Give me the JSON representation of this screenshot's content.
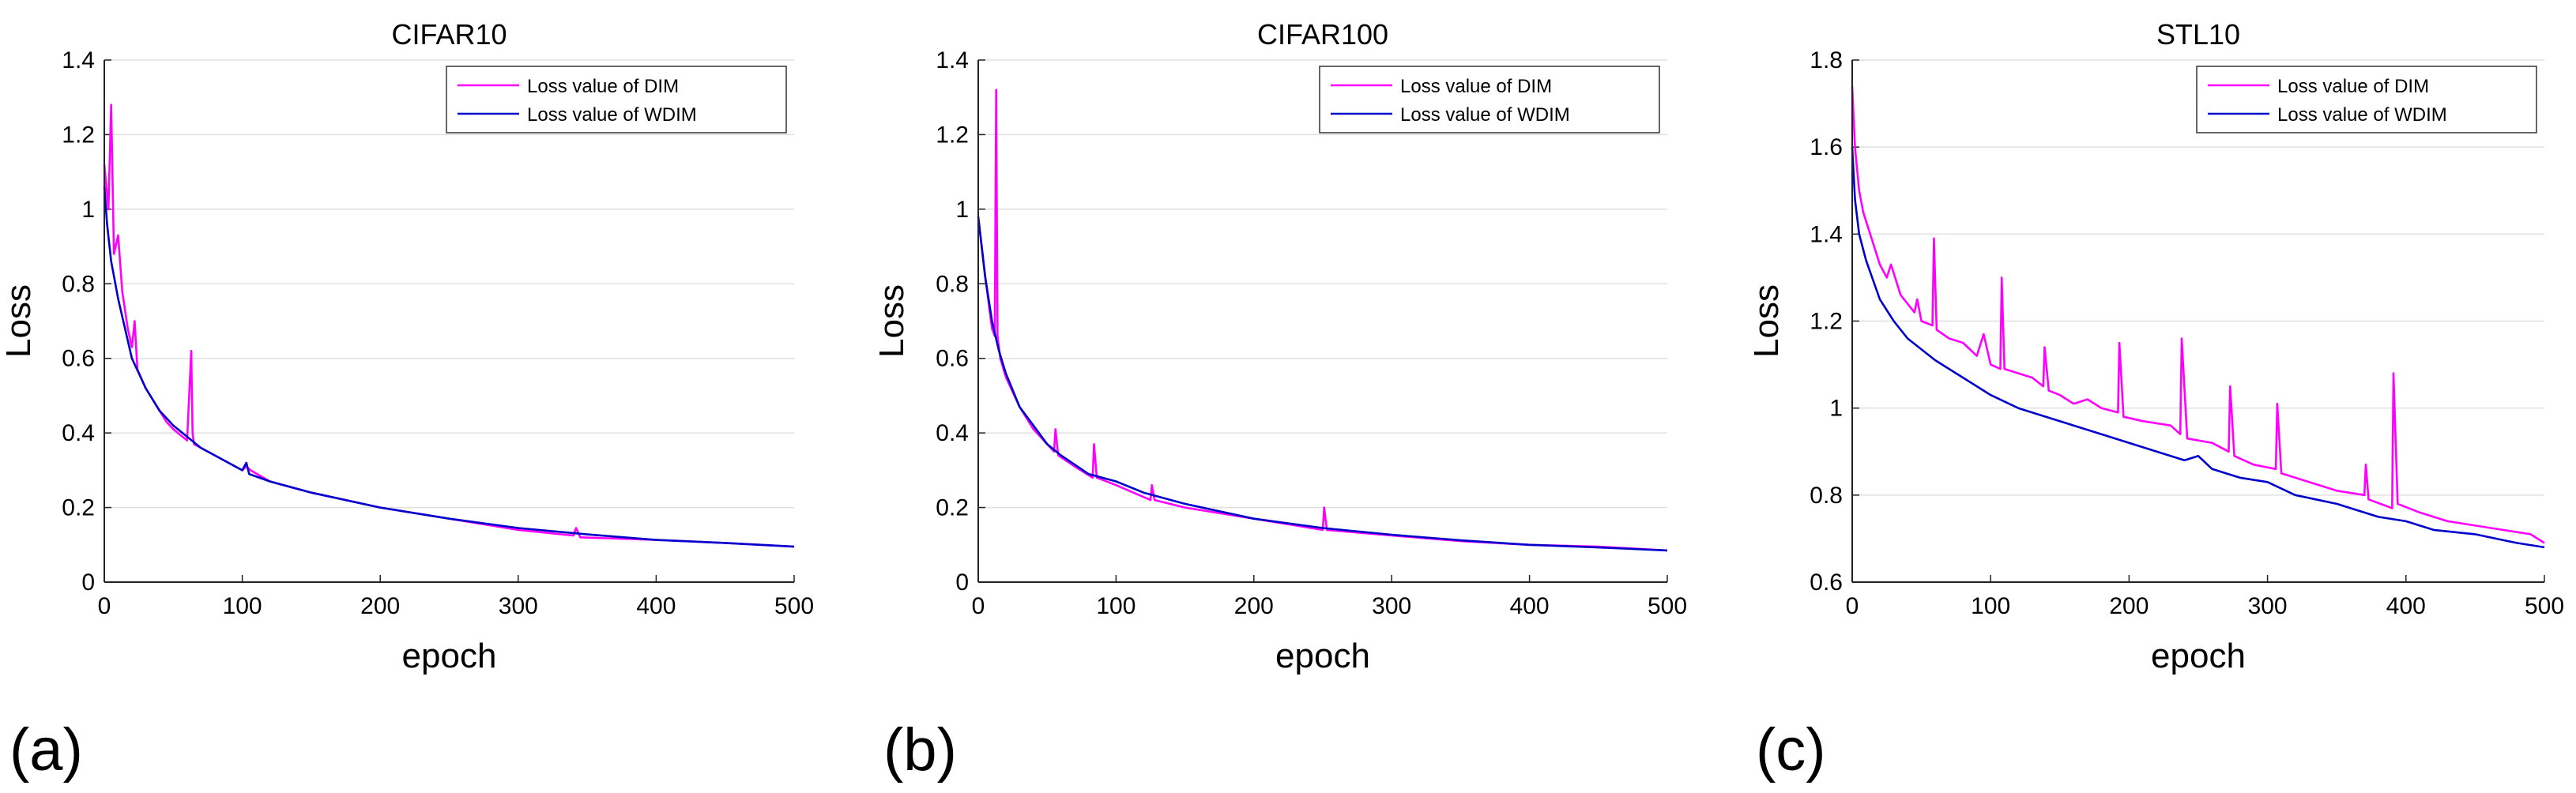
{
  "colors": {
    "dim": "#ff00ff",
    "wdim": "#0000cc",
    "grid": "#e0e0e0",
    "axis": "#222222"
  },
  "chart_data": [
    {
      "type": "line",
      "panel": "(a)",
      "title": "CIFAR10",
      "xlabel": "epoch",
      "ylabel": "Loss",
      "xlim": [
        0,
        500
      ],
      "ylim": [
        0,
        1.4
      ],
      "xticks": [
        0,
        100,
        200,
        300,
        400,
        500
      ],
      "yticks": [
        0,
        0.2,
        0.4,
        0.6,
        0.8,
        1,
        1.2,
        1.4
      ],
      "grid": "horizontal",
      "legend": "top-right",
      "series": [
        {
          "name": "Loss value of DIM",
          "color": "#ff00ff",
          "x": [
            0,
            3,
            5,
            7,
            10,
            13,
            17,
            20,
            22,
            24,
            30,
            40,
            45,
            50,
            60,
            63,
            64,
            65,
            70,
            80,
            100,
            103,
            106,
            120,
            150,
            200,
            250,
            300,
            340,
            342,
            345,
            400,
            450,
            500
          ],
          "y": [
            1.12,
            1.0,
            1.28,
            0.88,
            0.93,
            0.78,
            0.68,
            0.63,
            0.7,
            0.57,
            0.52,
            0.46,
            0.43,
            0.41,
            0.38,
            0.62,
            0.4,
            0.37,
            0.36,
            0.34,
            0.3,
            0.31,
            0.3,
            0.27,
            0.24,
            0.2,
            0.17,
            0.14,
            0.125,
            0.145,
            0.12,
            0.113,
            0.105,
            0.095
          ]
        },
        {
          "name": "Loss value of WDIM",
          "color": "#0000cc",
          "x": [
            0,
            2,
            5,
            8,
            10,
            15,
            20,
            25,
            30,
            40,
            50,
            60,
            70,
            80,
            100,
            103,
            105,
            120,
            150,
            200,
            250,
            300,
            350,
            400,
            450,
            500
          ],
          "y": [
            1.06,
            0.96,
            0.86,
            0.8,
            0.76,
            0.68,
            0.6,
            0.56,
            0.52,
            0.46,
            0.42,
            0.39,
            0.36,
            0.34,
            0.3,
            0.32,
            0.29,
            0.27,
            0.24,
            0.2,
            0.17,
            0.145,
            0.128,
            0.113,
            0.105,
            0.095
          ]
        }
      ]
    },
    {
      "type": "line",
      "panel": "(b)",
      "title": "CIFAR100",
      "xlabel": "epoch",
      "ylabel": "Loss",
      "xlim": [
        0,
        500
      ],
      "ylim": [
        0,
        1.4
      ],
      "xticks": [
        0,
        100,
        200,
        300,
        400,
        500
      ],
      "yticks": [
        0,
        0.2,
        0.4,
        0.6,
        0.8,
        1,
        1.2,
        1.4
      ],
      "grid": "horizontal",
      "legend": "top-right",
      "series": [
        {
          "name": "Loss value of DIM",
          "color": "#ff00ff",
          "x": [
            0,
            5,
            10,
            12,
            13,
            14,
            16,
            20,
            30,
            40,
            55,
            56,
            58,
            70,
            83,
            84,
            86,
            100,
            125,
            126,
            128,
            150,
            200,
            250,
            251,
            253,
            300,
            350,
            400,
            450,
            500
          ],
          "y": [
            0.98,
            0.82,
            0.68,
            0.66,
            1.32,
            0.66,
            0.6,
            0.55,
            0.47,
            0.41,
            0.35,
            0.41,
            0.34,
            0.31,
            0.28,
            0.37,
            0.28,
            0.26,
            0.22,
            0.26,
            0.22,
            0.2,
            0.17,
            0.14,
            0.2,
            0.14,
            0.125,
            0.11,
            0.1,
            0.095,
            0.085
          ]
        },
        {
          "name": "Loss value of WDIM",
          "color": "#0000cc",
          "x": [
            0,
            5,
            10,
            15,
            20,
            30,
            40,
            50,
            60,
            80,
            100,
            120,
            150,
            200,
            250,
            300,
            350,
            400,
            450,
            500
          ],
          "y": [
            0.98,
            0.82,
            0.7,
            0.62,
            0.56,
            0.47,
            0.42,
            0.37,
            0.34,
            0.29,
            0.27,
            0.24,
            0.21,
            0.17,
            0.145,
            0.127,
            0.112,
            0.1,
            0.093,
            0.085
          ]
        }
      ]
    },
    {
      "type": "line",
      "panel": "(c)",
      "title": "STL10",
      "xlabel": "epoch",
      "ylabel": "Loss",
      "xlim": [
        0,
        500
      ],
      "ylim": [
        0.6,
        1.8
      ],
      "xticks": [
        0,
        100,
        200,
        300,
        400,
        500
      ],
      "yticks": [
        0.6,
        0.8,
        1,
        1.2,
        1.4,
        1.6,
        1.8
      ],
      "grid": "horizontal",
      "legend": "top-right",
      "series": [
        {
          "name": "Loss value of DIM",
          "color": "#ff00ff",
          "x": [
            0,
            2,
            5,
            8,
            10,
            15,
            20,
            25,
            28,
            35,
            45,
            47,
            50,
            58,
            59,
            61,
            70,
            80,
            90,
            95,
            100,
            107,
            108,
            110,
            120,
            130,
            138,
            139,
            142,
            150,
            160,
            170,
            180,
            192,
            193,
            196,
            210,
            230,
            237,
            238,
            242,
            260,
            272,
            273,
            276,
            290,
            306,
            307,
            310,
            330,
            350,
            370,
            371,
            373,
            390,
            391,
            394,
            410,
            430,
            450,
            470,
            490,
            500
          ],
          "y": [
            1.74,
            1.6,
            1.5,
            1.45,
            1.43,
            1.38,
            1.33,
            1.3,
            1.33,
            1.26,
            1.22,
            1.25,
            1.2,
            1.19,
            1.39,
            1.18,
            1.16,
            1.15,
            1.12,
            1.17,
            1.1,
            1.09,
            1.3,
            1.09,
            1.08,
            1.07,
            1.05,
            1.14,
            1.04,
            1.03,
            1.01,
            1.02,
            1.0,
            0.99,
            1.15,
            0.98,
            0.97,
            0.96,
            0.94,
            1.16,
            0.93,
            0.92,
            0.9,
            1.05,
            0.89,
            0.87,
            0.86,
            1.01,
            0.85,
            0.83,
            0.81,
            0.8,
            0.87,
            0.79,
            0.77,
            1.08,
            0.78,
            0.76,
            0.74,
            0.73,
            0.72,
            0.71,
            0.69
          ]
        },
        {
          "name": "Loss value of WDIM",
          "color": "#0000cc",
          "x": [
            0,
            2,
            5,
            10,
            20,
            30,
            40,
            60,
            80,
            100,
            120,
            150,
            180,
            200,
            220,
            240,
            250,
            260,
            280,
            300,
            320,
            350,
            380,
            400,
            420,
            450,
            480,
            500
          ],
          "y": [
            1.6,
            1.48,
            1.4,
            1.34,
            1.25,
            1.2,
            1.16,
            1.11,
            1.07,
            1.03,
            1.0,
            0.97,
            0.94,
            0.92,
            0.9,
            0.88,
            0.89,
            0.86,
            0.84,
            0.83,
            0.8,
            0.78,
            0.75,
            0.74,
            0.72,
            0.71,
            0.69,
            0.68
          ]
        }
      ]
    }
  ]
}
